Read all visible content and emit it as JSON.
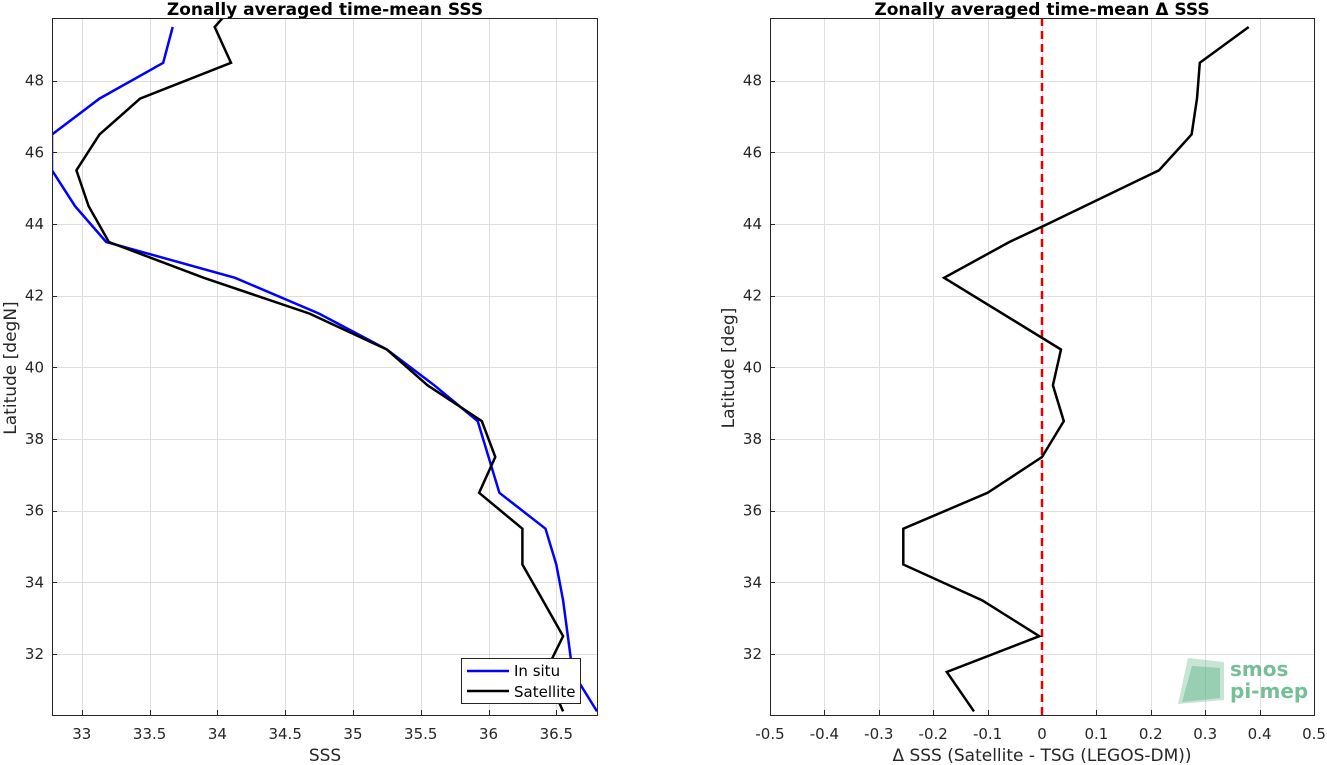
{
  "chart_data": [
    {
      "type": "line",
      "title": "Zonally averaged time-mean SSS",
      "xlabel": "SSS",
      "ylabel": "Latitude [degN]",
      "xlim": [
        32.78,
        36.8
      ],
      "ylim": [
        30.3,
        49.75
      ],
      "xticks": [
        33,
        33.5,
        34,
        34.5,
        35,
        35.5,
        36,
        36.5
      ],
      "xtick_labels": [
        "33",
        "33.5",
        "34",
        "34.5",
        "35",
        "35.5",
        "36",
        "36.5"
      ],
      "yticks": [
        32,
        34,
        36,
        38,
        40,
        42,
        44,
        46,
        48
      ],
      "ytick_labels": [
        "32",
        "34",
        "36",
        "38",
        "40",
        "42",
        "44",
        "46",
        "48"
      ],
      "grid": true,
      "legend": "bottom-right",
      "series": [
        {
          "name": "In situ",
          "color": "#0000ff",
          "points": [
            [
              33.67,
              49.5
            ],
            [
              33.6,
              48.5
            ],
            [
              33.13,
              47.5
            ],
            [
              32.78,
              46.5
            ],
            [
              32.78,
              45.5
            ],
            [
              32.95,
              44.5
            ],
            [
              33.18,
              43.5
            ],
            [
              34.13,
              42.5
            ],
            [
              34.75,
              41.5
            ],
            [
              35.25,
              40.5
            ],
            [
              35.6,
              39.5
            ],
            [
              35.92,
              38.5
            ],
            [
              36.08,
              36.5
            ],
            [
              36.42,
              35.5
            ],
            [
              36.5,
              34.5
            ],
            [
              36.55,
              33.5
            ],
            [
              36.62,
              31.5
            ],
            [
              36.8,
              30.4
            ]
          ]
        },
        {
          "name": "Satellite",
          "color": "#000000",
          "points": [
            [
              34.05,
              49.8
            ],
            [
              33.98,
              49.5
            ],
            [
              34.1,
              48.5
            ],
            [
              33.43,
              47.5
            ],
            [
              33.13,
              46.5
            ],
            [
              32.96,
              45.5
            ],
            [
              33.05,
              44.5
            ],
            [
              33.2,
              43.5
            ],
            [
              33.9,
              42.5
            ],
            [
              34.68,
              41.5
            ],
            [
              35.25,
              40.5
            ],
            [
              35.55,
              39.5
            ],
            [
              35.95,
              38.5
            ],
            [
              36.05,
              37.5
            ],
            [
              35.93,
              36.5
            ],
            [
              36.25,
              35.5
            ],
            [
              36.25,
              34.5
            ],
            [
              36.4,
              33.5
            ],
            [
              36.55,
              32.5
            ],
            [
              36.42,
              31.5
            ],
            [
              36.55,
              30.4
            ]
          ]
        }
      ]
    },
    {
      "type": "line",
      "title": "Zonally averaged time-mean Δ SSS",
      "xlabel": "Δ SSS (Satellite - TSG (LEGOS-DM))",
      "ylabel": "Latitude [deg]",
      "xlim": [
        -0.5,
        0.5
      ],
      "ylim": [
        30.3,
        49.75
      ],
      "xticks": [
        -0.5,
        -0.4,
        -0.3,
        -0.2,
        -0.1,
        0,
        0.1,
        0.2,
        0.3,
        0.4,
        0.5
      ],
      "xtick_labels": [
        "-0.5",
        "-0.4",
        "-0.3",
        "-0.2",
        "-0.1",
        "0",
        "0.1",
        "0.2",
        "0.3",
        "0.4",
        "0.5"
      ],
      "yticks": [
        32,
        34,
        36,
        38,
        40,
        42,
        44,
        46,
        48
      ],
      "ytick_labels": [
        "32",
        "34",
        "36",
        "38",
        "40",
        "42",
        "44",
        "46",
        "48"
      ],
      "grid": true,
      "reference_line": {
        "x": 0,
        "color": "#e00000",
        "style": "dashed"
      },
      "series": [
        {
          "color": "#000000",
          "points": [
            [
              0.38,
              49.5
            ],
            [
              0.29,
              48.5
            ],
            [
              0.285,
              47.5
            ],
            [
              0.275,
              46.5
            ],
            [
              0.215,
              45.5
            ],
            [
              0.01,
              44
            ],
            [
              -0.06,
              43.5
            ],
            [
              -0.18,
              42.5
            ],
            [
              0.035,
              40.5
            ],
            [
              0.02,
              39.5
            ],
            [
              0.04,
              38.5
            ],
            [
              0.0,
              37.5
            ],
            [
              -0.1,
              36.5
            ],
            [
              -0.255,
              35.5
            ],
            [
              -0.255,
              34.5
            ],
            [
              -0.11,
              33.5
            ],
            [
              -0.005,
              32.5
            ],
            [
              -0.175,
              31.5
            ],
            [
              -0.125,
              30.4
            ]
          ]
        }
      ]
    }
  ],
  "logo": {
    "line1": "smos",
    "line2": "pi-mep",
    "color": "#5fb386"
  }
}
